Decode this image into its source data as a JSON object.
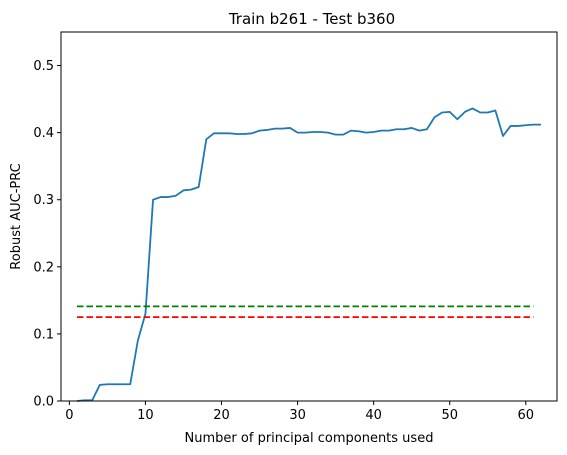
{
  "chart_data": {
    "type": "line",
    "title": "Train b261 - Test b360",
    "xlabel": "Number of principal components used",
    "ylabel": "Robust AUC-PRC",
    "xlim": [
      -1.1,
      64.1
    ],
    "ylim": [
      0,
      0.55
    ],
    "x_ticks": [
      {
        "value": 0,
        "label": "0"
      },
      {
        "value": 10,
        "label": "10"
      },
      {
        "value": 20,
        "label": "20"
      },
      {
        "value": 30,
        "label": "30"
      },
      {
        "value": 40,
        "label": "40"
      },
      {
        "value": 50,
        "label": "50"
      },
      {
        "value": 60,
        "label": "60"
      }
    ],
    "y_ticks": [
      {
        "value": 0.0,
        "label": "0.0"
      },
      {
        "value": 0.1,
        "label": "0.1"
      },
      {
        "value": 0.2,
        "label": "0.2"
      },
      {
        "value": 0.3,
        "label": "0.3"
      },
      {
        "value": 0.4,
        "label": "0.4"
      },
      {
        "value": 0.5,
        "label": "0.5"
      }
    ],
    "grid": false,
    "series": [
      {
        "style": "solid",
        "color": "#1f77b4",
        "x": [
          1,
          2,
          3,
          4,
          5,
          6,
          7,
          8,
          9,
          10,
          11,
          12,
          13,
          14,
          15,
          16,
          17,
          18,
          19,
          20,
          21,
          22,
          23,
          24,
          25,
          26,
          27,
          28,
          29,
          30,
          31,
          32,
          33,
          34,
          35,
          36,
          37,
          38,
          39,
          40,
          41,
          42,
          43,
          44,
          45,
          46,
          47,
          48,
          49,
          50,
          51,
          52,
          53,
          54,
          55,
          56,
          57,
          58,
          59,
          60,
          61,
          62
        ],
        "y": [
          0.0,
          0.001,
          0.001,
          0.024,
          0.025,
          0.025,
          0.025,
          0.025,
          0.09,
          0.13,
          0.3,
          0.304,
          0.304,
          0.306,
          0.314,
          0.315,
          0.319,
          0.39,
          0.399,
          0.399,
          0.399,
          0.398,
          0.398,
          0.399,
          0.403,
          0.404,
          0.406,
          0.406,
          0.407,
          0.4,
          0.4,
          0.401,
          0.401,
          0.4,
          0.397,
          0.397,
          0.403,
          0.402,
          0.4,
          0.401,
          0.403,
          0.403,
          0.405,
          0.405,
          0.407,
          0.403,
          0.405,
          0.423,
          0.43,
          0.431,
          0.42,
          0.431,
          0.436,
          0.43,
          0.43,
          0.433,
          0.395,
          0.41,
          0.41,
          0.411,
          0.412,
          0.412
        ]
      },
      {
        "style": "dashed",
        "color": "#008000",
        "x": [
          1,
          61
        ],
        "y": [
          0.141,
          0.141
        ]
      },
      {
        "style": "dashed",
        "color": "#ff0000",
        "x": [
          1,
          61
        ],
        "y": [
          0.125,
          0.125
        ]
      }
    ]
  }
}
